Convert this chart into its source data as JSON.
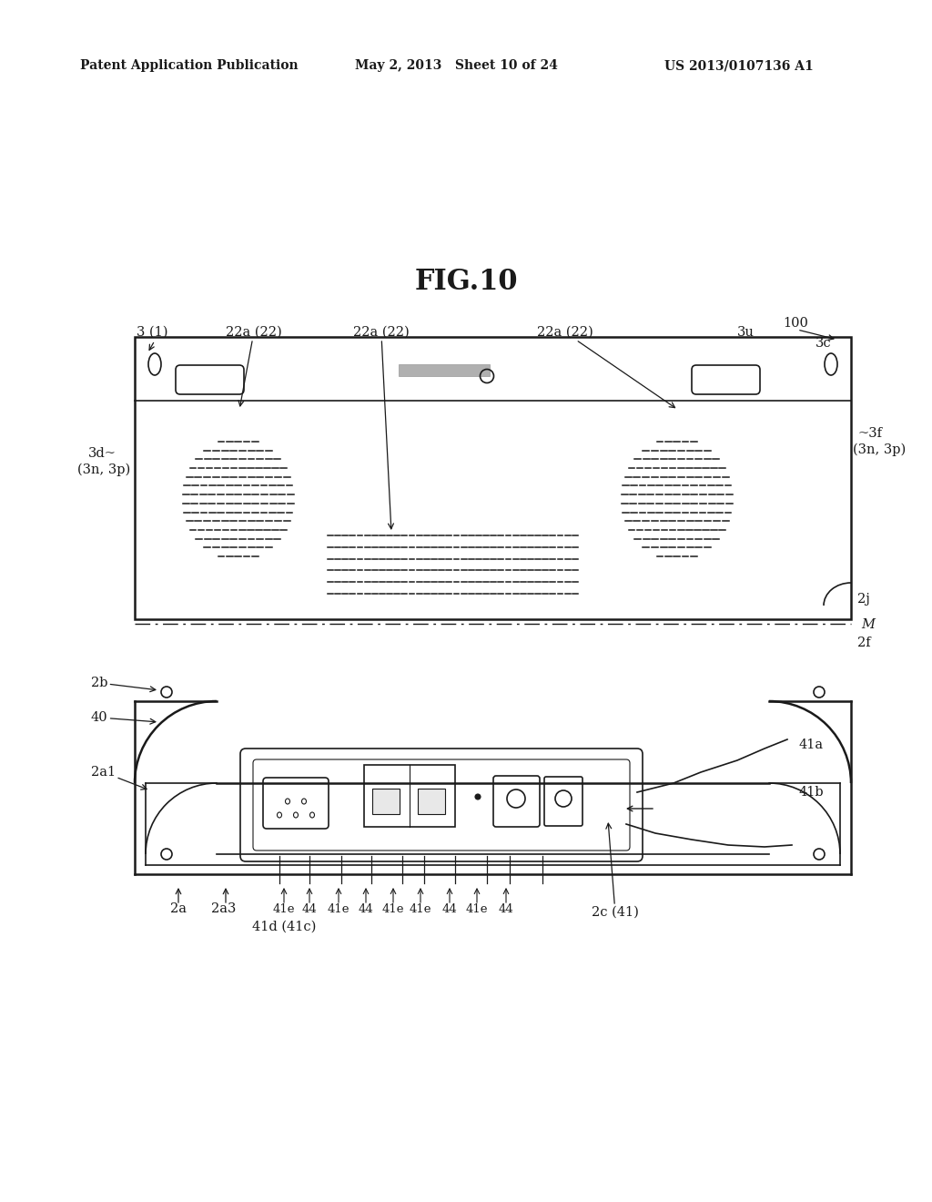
{
  "header_left": "Patent Application Publication",
  "header_mid": "May 2, 2013   Sheet 10 of 24",
  "header_right": "US 2013/0107136 A1",
  "fig_title": "FIG.10",
  "bg_color": "#ffffff",
  "line_color": "#1a1a1a",
  "label_color": "#1a1a1a",
  "ann_fontsize": 10.5,
  "title_fontsize": 22,
  "header_fontsize": 10
}
